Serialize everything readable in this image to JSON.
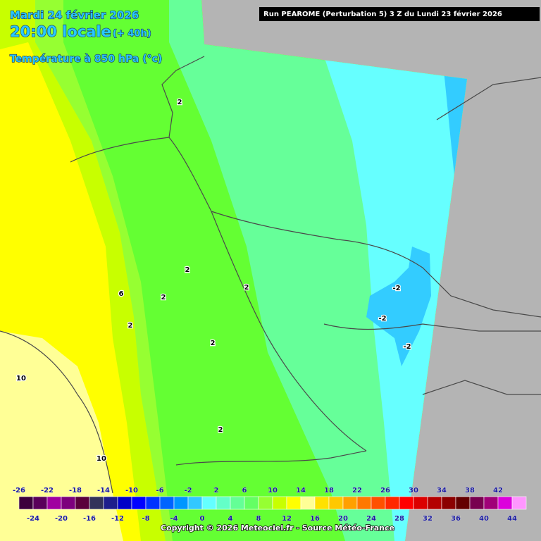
{
  "header": {
    "date": "Mardi 24 février 2026",
    "time": "20:00 locale",
    "lead": "(+ 40h)",
    "parameter": "Température à 850 hPa (°c)",
    "run": "Run PEAROME (Perturbation 5) 3 Z du Lundi 23 février 2026"
  },
  "contour_labels": [
    2,
    2,
    2,
    2,
    6,
    2,
    2,
    10,
    10,
    2,
    -2,
    -2,
    -2
  ],
  "legend": {
    "items": [
      {
        "value": -26,
        "color": "#3c003c"
      },
      {
        "value": -24,
        "color": "#5a005a"
      },
      {
        "value": -22,
        "color": "#a000a0"
      },
      {
        "value": -20,
        "color": "#7d007d"
      },
      {
        "value": -18,
        "color": "#5a003c"
      },
      {
        "value": -16,
        "color": "#32325a"
      },
      {
        "value": -14,
        "color": "#1e1e8c"
      },
      {
        "value": -12,
        "color": "#0000c8"
      },
      {
        "value": -10,
        "color": "#0000ff"
      },
      {
        "value": -8,
        "color": "#0032ff"
      },
      {
        "value": -6,
        "color": "#0064ff"
      },
      {
        "value": -4,
        "color": "#0096ff"
      },
      {
        "value": -2,
        "color": "#32c8ff"
      },
      {
        "value": 0,
        "color": "#64ffff"
      },
      {
        "value": 2,
        "color": "#64ffc8"
      },
      {
        "value": 4,
        "color": "#64ff96"
      },
      {
        "value": 6,
        "color": "#64ff64"
      },
      {
        "value": 8,
        "color": "#96ff32"
      },
      {
        "value": 10,
        "color": "#c8ff00"
      },
      {
        "value": 12,
        "color": "#ffff00"
      },
      {
        "value": 14,
        "color": "#ffff96"
      },
      {
        "value": 16,
        "color": "#ffe100"
      },
      {
        "value": 18,
        "color": "#ffc800"
      },
      {
        "value": 20,
        "color": "#ffa000"
      },
      {
        "value": 22,
        "color": "#ff7800"
      },
      {
        "value": 24,
        "color": "#ff5000"
      },
      {
        "value": 26,
        "color": "#ff2800"
      },
      {
        "value": 28,
        "color": "#ff0000"
      },
      {
        "value": 30,
        "color": "#dc0000"
      },
      {
        "value": 32,
        "color": "#b40000"
      },
      {
        "value": 34,
        "color": "#8c0000"
      },
      {
        "value": 36,
        "color": "#640000"
      },
      {
        "value": 38,
        "color": "#780050"
      },
      {
        "value": 40,
        "color": "#a00078"
      },
      {
        "value": 42,
        "color": "#dc00dc"
      },
      {
        "value": 44,
        "color": "#ff96ff"
      }
    ]
  },
  "copyright": "Copyright © 2026 Meteociel.fr - Source Météo-France"
}
